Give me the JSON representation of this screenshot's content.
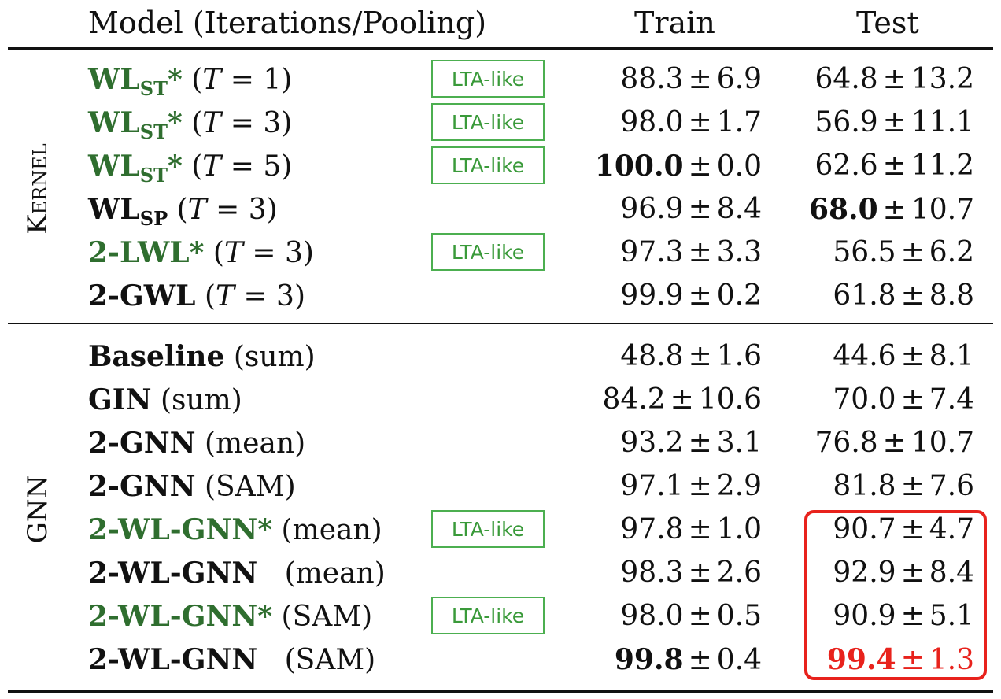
{
  "header": {
    "model": "Model (Iterations/Pooling)",
    "train": "Train",
    "test": "Test"
  },
  "groups": {
    "kernel": "Kernel",
    "gnn": "GNN"
  },
  "badge_label": "LTA-like",
  "colors": {
    "green_model": "#2f6e2f",
    "badge_border": "#4caf50",
    "highlight_red": "#e8221c"
  },
  "kernel_rows": [
    {
      "name": "WL",
      "sub": "ST",
      "star": "*",
      "param": "(T = 1)",
      "train": "88.3",
      "train_sd": "6.9",
      "test": "64.8",
      "test_sd": "13.2",
      "lta": true
    },
    {
      "name": "WL",
      "sub": "ST",
      "star": "*",
      "param": "(T = 3)",
      "train": "98.0",
      "train_sd": "1.7",
      "test": "56.9",
      "test_sd": "11.1",
      "lta": true
    },
    {
      "name": "WL",
      "sub": "ST",
      "star": "*",
      "param": "(T = 5)",
      "train": "100.0",
      "train_sd": "0.0",
      "test": "62.6",
      "test_sd": "11.2",
      "lta": true
    },
    {
      "name": "WL",
      "sub": "SP",
      "star": "",
      "param": "(T = 3)",
      "train": "96.9",
      "train_sd": "8.4",
      "test": "68.0",
      "test_sd": "10.7",
      "lta": false
    },
    {
      "name": "2-LWL",
      "sub": "",
      "star": "*",
      "param": "(T = 3)",
      "train": "97.3",
      "train_sd": "3.3",
      "test": "56.5",
      "test_sd": "6.2",
      "lta": true
    },
    {
      "name": "2-GWL",
      "sub": "",
      "star": "",
      "param": "(T = 3)",
      "train": "99.9",
      "train_sd": "0.2",
      "test": "61.8",
      "test_sd": "8.8",
      "lta": false
    }
  ],
  "gnn_rows": [
    {
      "name": "Baseline",
      "star": "",
      "param": "(sum)",
      "train": "48.8",
      "train_sd": "1.6",
      "test": "44.6",
      "test_sd": "8.1",
      "lta": false
    },
    {
      "name": "GIN",
      "star": "",
      "param": "(sum)",
      "train": "84.2",
      "train_sd": "10.6",
      "test": "70.0",
      "test_sd": "7.4",
      "lta": false
    },
    {
      "name": "2-GNN",
      "star": "",
      "param": "(mean)",
      "train": "93.2",
      "train_sd": "3.1",
      "test": "76.8",
      "test_sd": "10.7",
      "lta": false
    },
    {
      "name": "2-GNN",
      "star": "",
      "param": "(SAM)",
      "train": "97.1",
      "train_sd": "2.9",
      "test": "81.8",
      "test_sd": "7.6",
      "lta": false
    },
    {
      "name": "2-WL-GNN",
      "star": "*",
      "param": "(mean)",
      "train": "97.8",
      "train_sd": "1.0",
      "test": "90.7",
      "test_sd": "4.7",
      "lta": true
    },
    {
      "name": "2-WL-GNN",
      "star": "",
      "param": "(mean)",
      "train": "98.3",
      "train_sd": "2.6",
      "test": "92.9",
      "test_sd": "8.4",
      "lta": false
    },
    {
      "name": "2-WL-GNN",
      "star": "*",
      "param": "(SAM)",
      "train": "98.0",
      "train_sd": "0.5",
      "test": "90.9",
      "test_sd": "5.1",
      "lta": true
    },
    {
      "name": "2-WL-GNN",
      "star": "",
      "param": "(SAM)",
      "train": "99.8",
      "train_sd": "0.4",
      "test": "99.4",
      "test_sd": "1.3",
      "lta": false
    }
  ]
}
